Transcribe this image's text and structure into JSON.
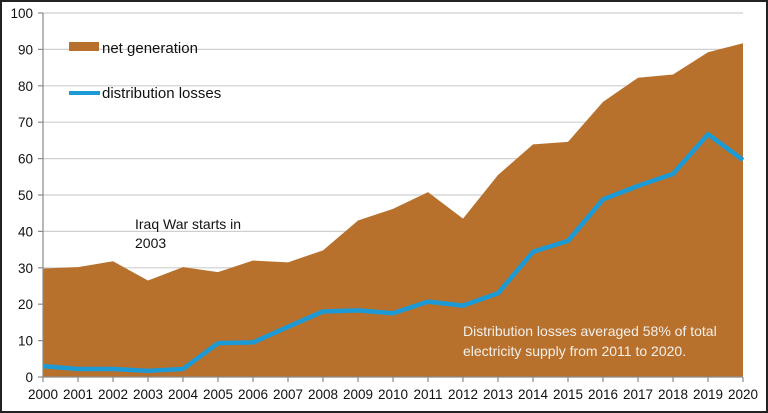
{
  "chart_data": {
    "type": "area",
    "title": "",
    "xlabel": "",
    "ylabel": "",
    "x": [
      2000,
      2001,
      2002,
      2003,
      2004,
      2005,
      2006,
      2007,
      2008,
      2009,
      2010,
      2011,
      2012,
      2013,
      2014,
      2015,
      2016,
      2017,
      2018,
      2019,
      2020
    ],
    "x_tick_labels": [
      "2000",
      "2001",
      "2002",
      "2003",
      "2004",
      "2005",
      "2006",
      "2007",
      "2008",
      "2009",
      "2010",
      "2011",
      "2012",
      "2013",
      "2014",
      "2015",
      "2016",
      "2017",
      "2018",
      "2019",
      "2020"
    ],
    "ylim": [
      0,
      100
    ],
    "y_ticks": [
      0,
      10,
      20,
      30,
      40,
      50,
      60,
      70,
      80,
      90,
      100
    ],
    "y_tick_labels": [
      "0",
      "10",
      "20",
      "30",
      "40",
      "50",
      "60",
      "70",
      "80",
      "90",
      "100"
    ],
    "grid": true,
    "legend_position": "top-left",
    "series": [
      {
        "name": "net generation",
        "type": "area",
        "color": "#b8712d",
        "values": [
          29.8,
          30.2,
          31.8,
          26.5,
          30.2,
          28.8,
          32.0,
          31.5,
          34.8,
          43.0,
          46.2,
          50.8,
          43.5,
          55.5,
          63.9,
          64.6,
          75.6,
          82.2,
          83.1,
          89.2,
          91.7
        ]
      },
      {
        "name": "distribution losses",
        "type": "line",
        "color": "#1b9ad6",
        "values": [
          3.0,
          2.2,
          2.2,
          1.7,
          2.2,
          9.3,
          9.5,
          13.8,
          18.0,
          18.3,
          17.5,
          20.7,
          19.6,
          23.0,
          34.4,
          37.4,
          48.8,
          52.5,
          55.8,
          66.7,
          59.6
        ]
      }
    ],
    "annotations": [
      {
        "id": "iraq",
        "lines": [
          "Iraq War starts in",
          "2003"
        ],
        "color": "#111111"
      },
      {
        "id": "losses",
        "lines": [
          "Distribution  losses averaged 58%  of total",
          "electricity supply  from 2011 to 2020."
        ],
        "color": "#f3f0ea"
      }
    ]
  }
}
